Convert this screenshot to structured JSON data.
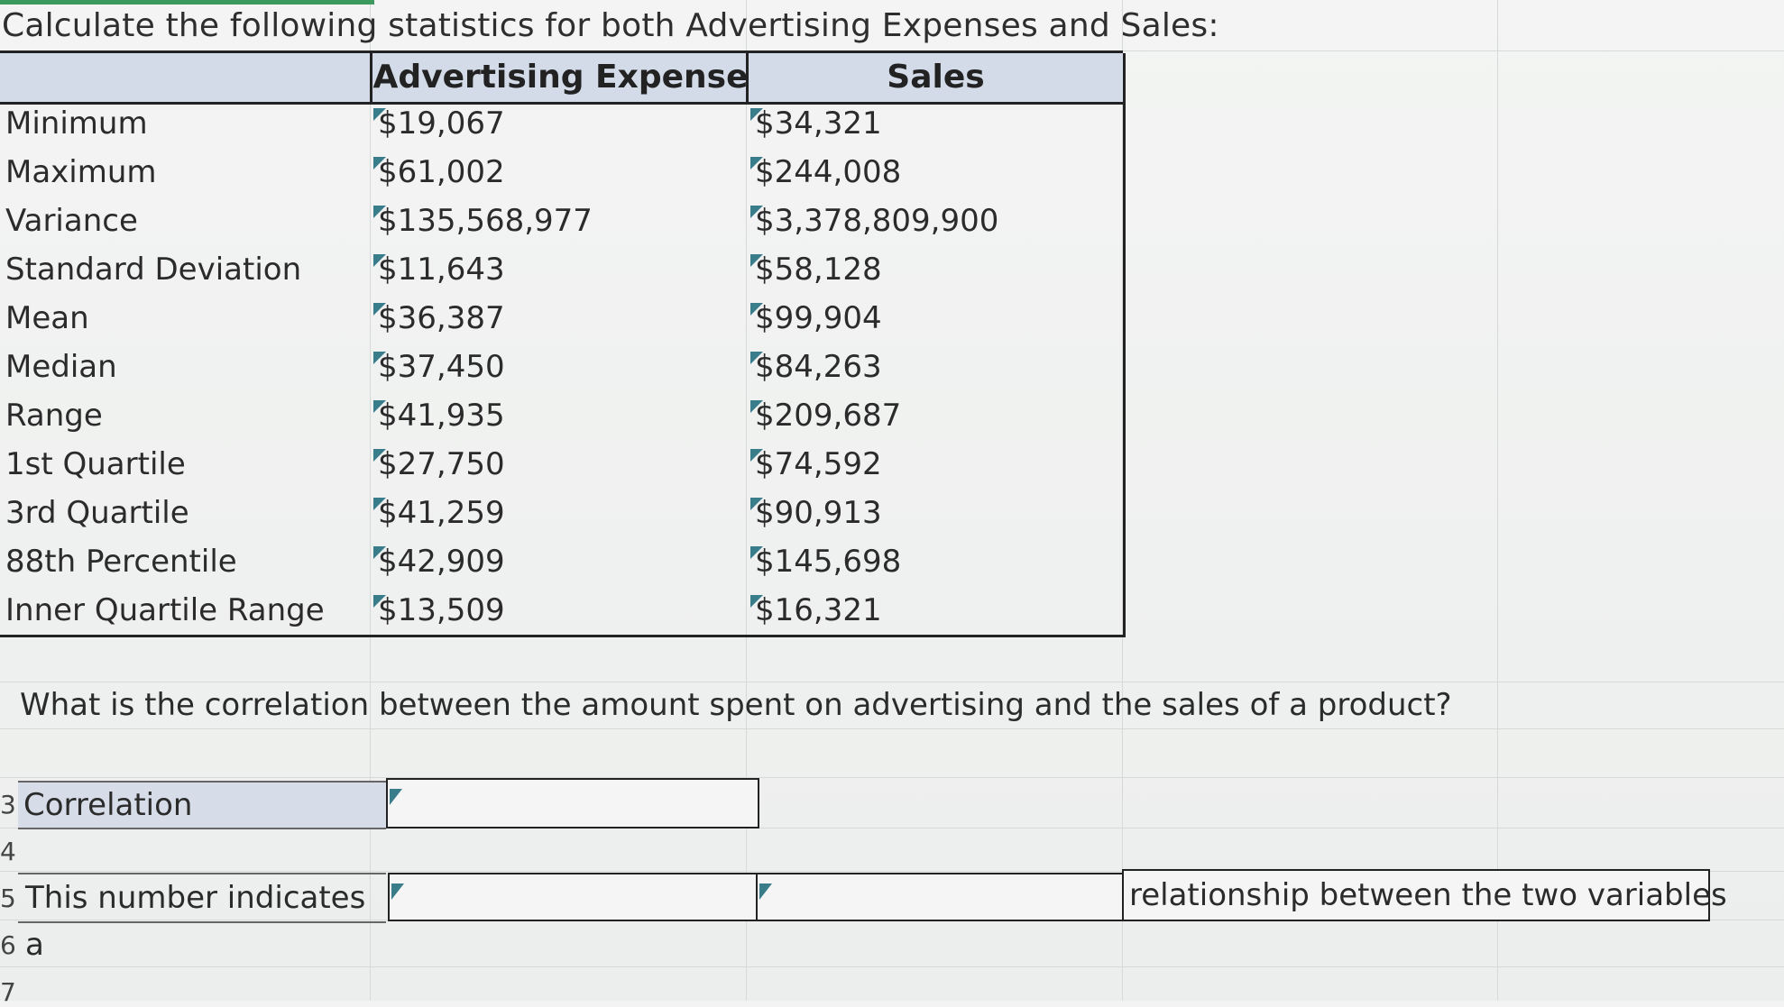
{
  "title": "Calculate the following statistics for both Advertising Expenses and Sales:",
  "table": {
    "headers": [
      "",
      "Advertising Expense",
      "Sales"
    ],
    "rows": [
      {
        "label": "Minimum",
        "ad": "$19,067",
        "sales": "$34,321"
      },
      {
        "label": "Maximum",
        "ad": "$61,002",
        "sales": "$244,008"
      },
      {
        "label": "Variance",
        "ad": "$135,568,977",
        "sales": "$3,378,809,900"
      },
      {
        "label": "Standard Deviation",
        "ad": "$11,643",
        "sales": "$58,128"
      },
      {
        "label": "Mean",
        "ad": "$36,387",
        "sales": "$99,904"
      },
      {
        "label": "Median",
        "ad": "$37,450",
        "sales": "$84,263"
      },
      {
        "label": "Range",
        "ad": "$41,935",
        "sales": "$209,687"
      },
      {
        "label": "1st Quartile",
        "ad": "$27,750",
        "sales": "$74,592"
      },
      {
        "label": "3rd Quartile",
        "ad": "$41,259",
        "sales": "$90,913"
      },
      {
        "label": "88th Percentile",
        "ad": "$42,909",
        "sales": "$145,698"
      },
      {
        "label": "Inner Quartile Range",
        "ad": "$13,509",
        "sales": "$16,321"
      }
    ]
  },
  "question": "What is the correlation between the amount spent on advertising and the sales of a product?",
  "correlation": {
    "label": "Correlation",
    "value": ""
  },
  "indicates": {
    "label": "This number indicates a",
    "direction_value": "",
    "strength_value": "",
    "suffix": "relationship between the two variables"
  },
  "row_numbers": [
    "3",
    "4",
    "5",
    "6",
    "7"
  ],
  "colors": {
    "header_fill": "#d3dbe8",
    "input_marker": "#3a7d8a",
    "selection_green": "#3c9a5f"
  }
}
